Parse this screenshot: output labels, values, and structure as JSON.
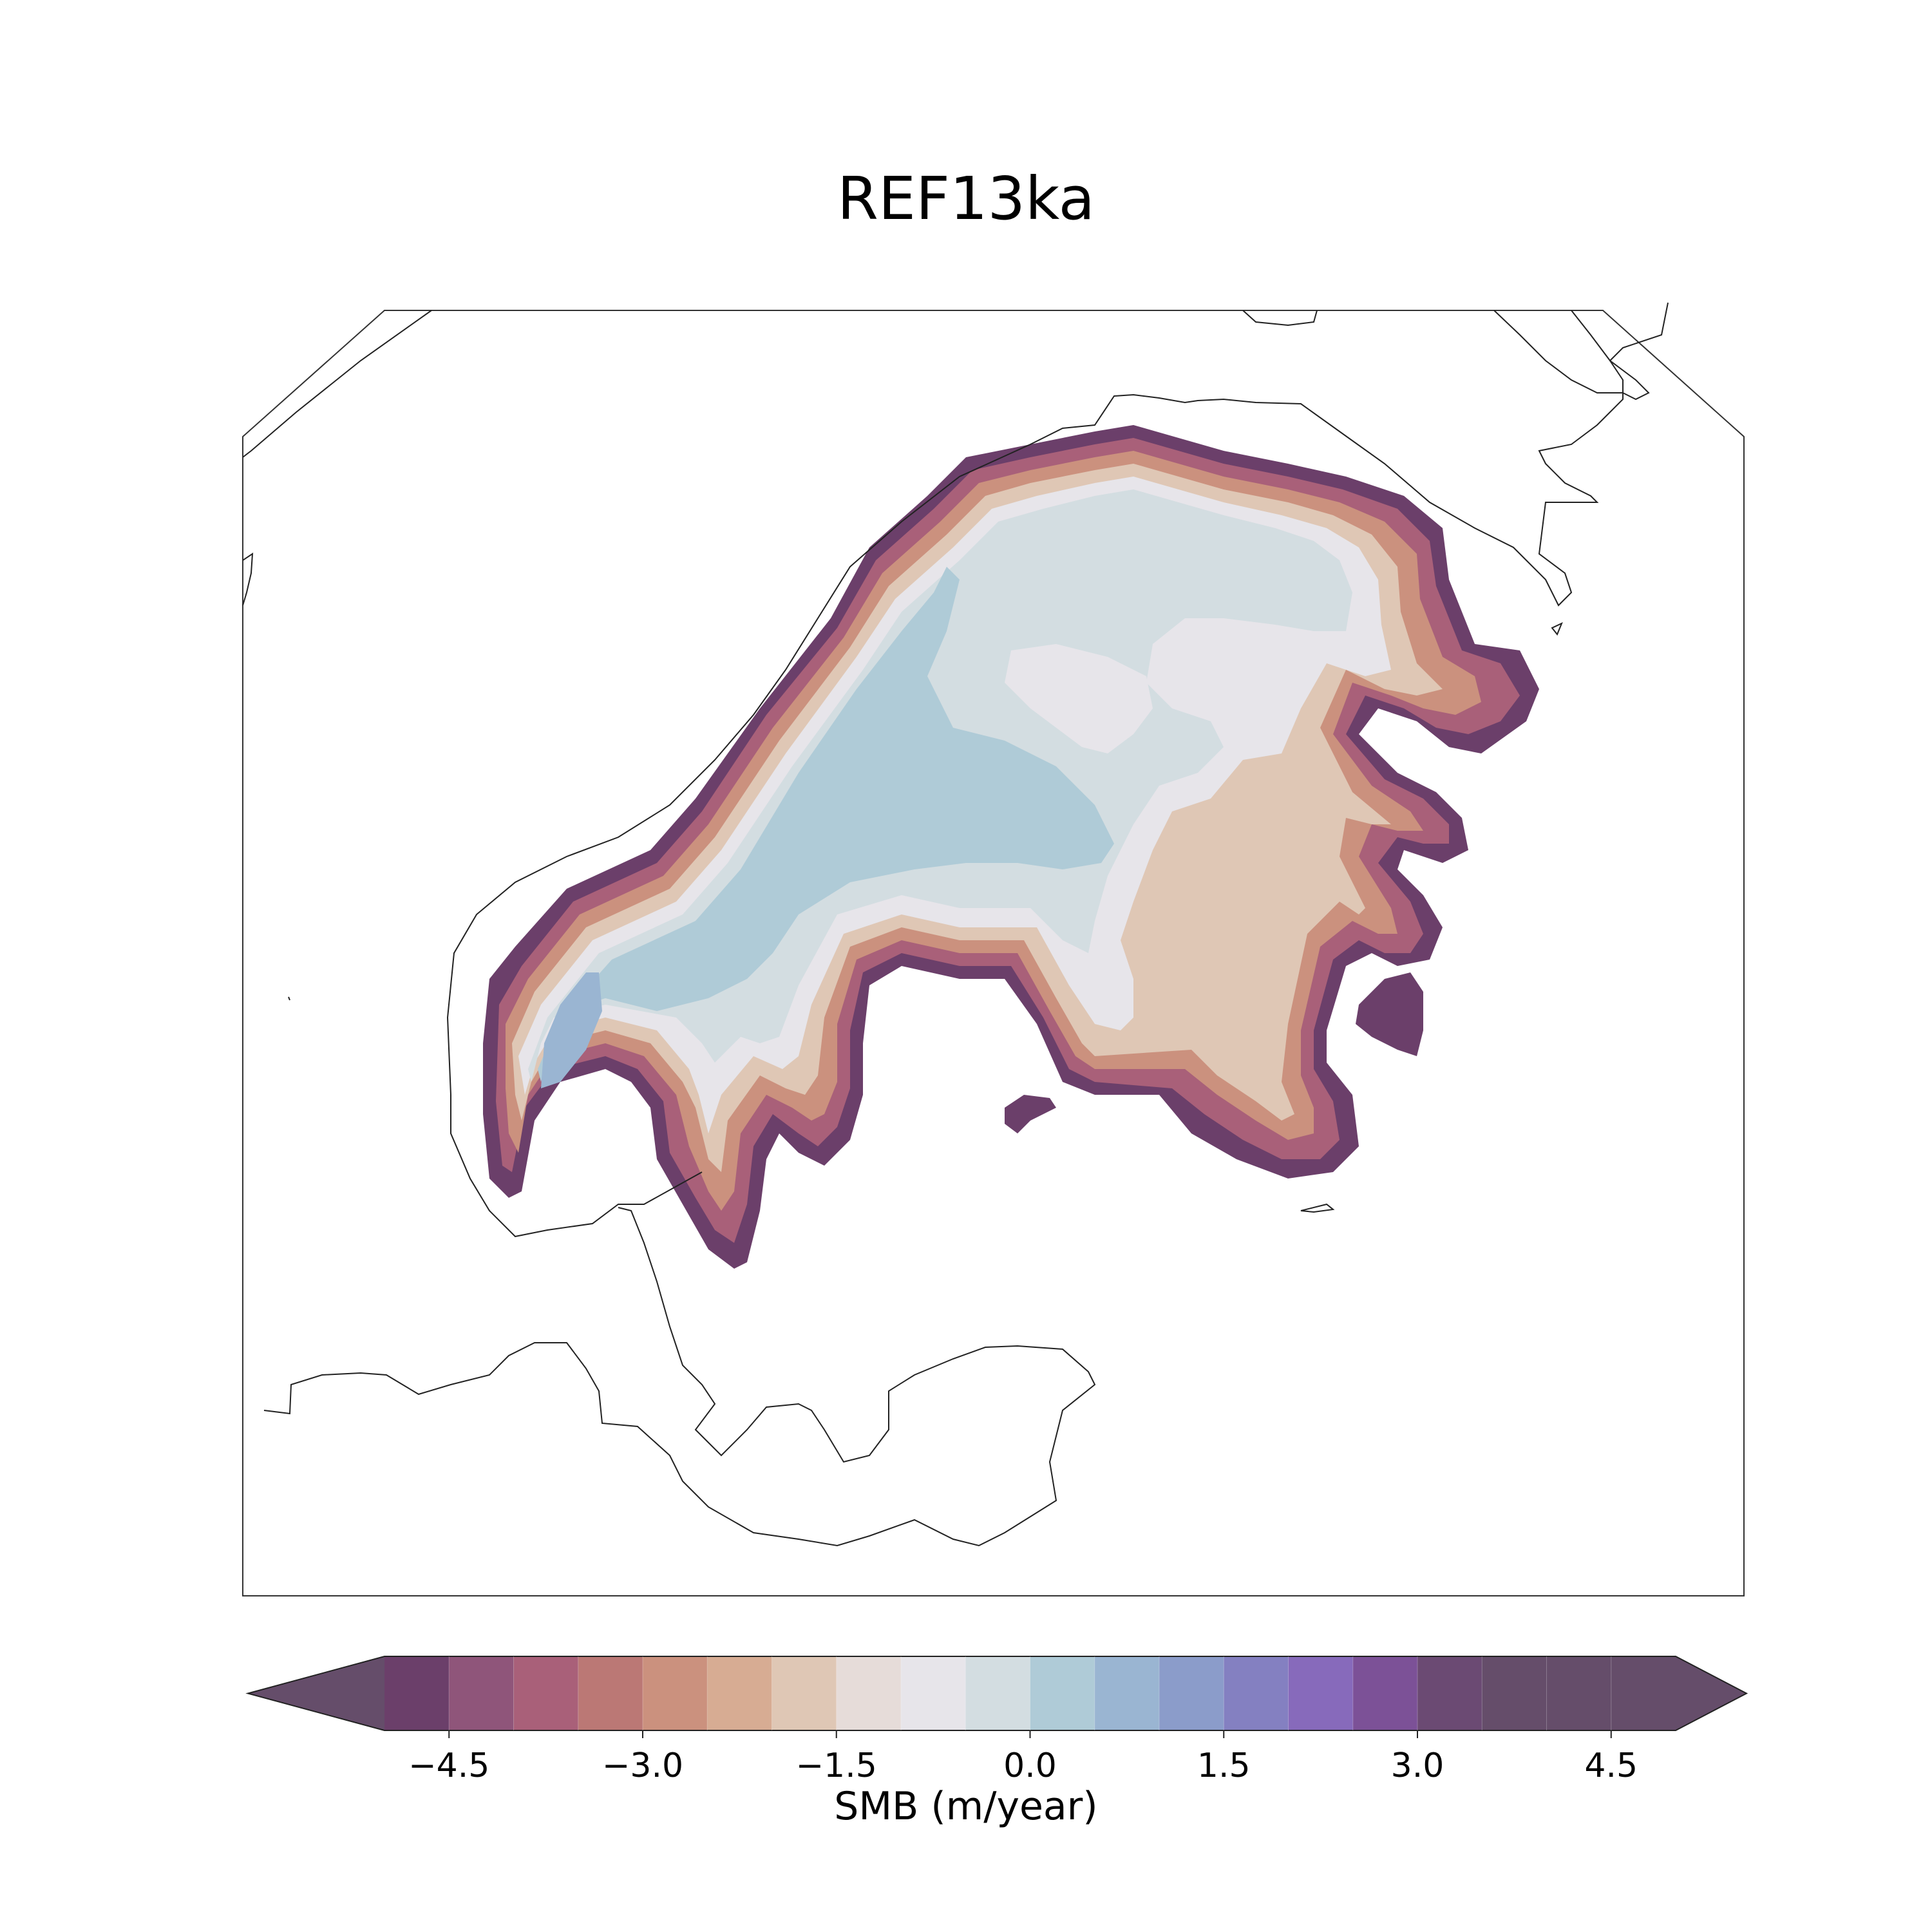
{
  "chart_data": {
    "type": "heatmap",
    "title": "REF13ka",
    "colorbar": {
      "label": "SMB (m/year)",
      "ticks": [
        -4.5,
        -3.0,
        -1.5,
        0.0,
        1.5,
        3.0,
        4.5
      ],
      "tick_labels": [
        "−4.5",
        "−3.0",
        "−1.5",
        "0.0",
        "1.5",
        "3.0",
        "4.5"
      ],
      "levels": [
        -5.0,
        -4.5,
        -4.0,
        -3.5,
        -3.0,
        -2.5,
        -2.0,
        -1.5,
        -1.0,
        -0.5,
        0.0,
        0.5,
        1.0,
        1.5,
        2.0,
        2.5,
        3.0,
        3.5,
        4.0,
        4.5,
        5.0
      ],
      "extend": "both",
      "colors": [
        "#654d6a",
        "#6b3f6a",
        "#8f557a",
        "#a96079",
        "#bb7875",
        "#cb917e",
        "#d7ac93",
        "#dfc7b5",
        "#e6dcd9",
        "#e7e5ea",
        "#d3dde1",
        "#afcbd7",
        "#9ab5d2",
        "#8b9cca",
        "#8480c1",
        "#876abb",
        "#7c5197",
        "#6b4a73",
        "#654d6a"
      ]
    },
    "field_description": "Surface mass balance over an ice sheet: positive values in the interior, strongly negative values along the margins and lobes"
  }
}
